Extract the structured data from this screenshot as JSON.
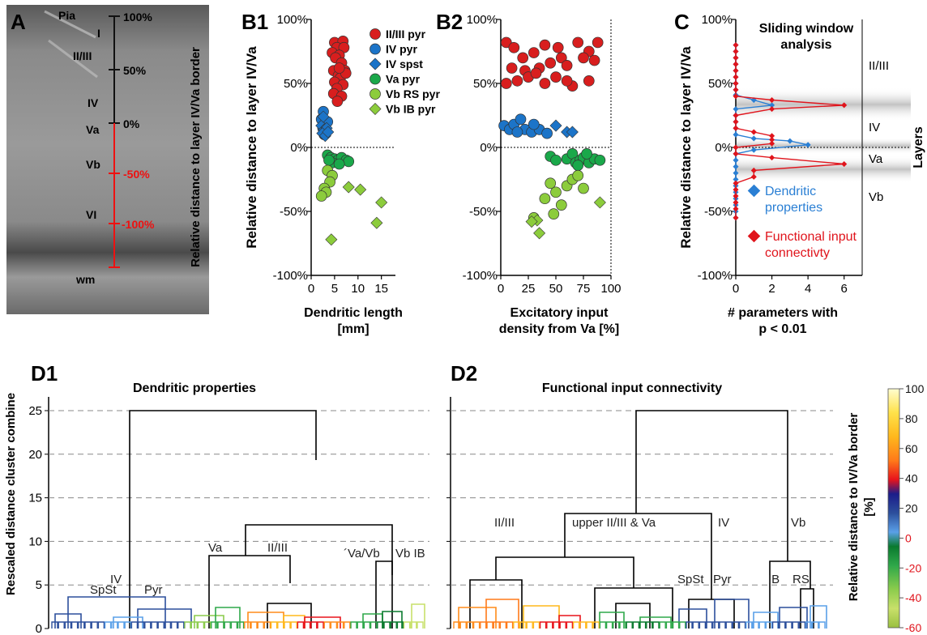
{
  "panels": {
    "A": {
      "letter": "A",
      "labels": {
        "pia": "Pia",
        "i": "I",
        "ii_iii": "II/III",
        "iv": "IV",
        "va": "Va",
        "vb": "Vb",
        "vi": "VI",
        "wm": "wm"
      },
      "scale_ticks": [
        "100%",
        "50%",
        "0%",
        "-50%",
        "-100%"
      ],
      "side_label": "Relative distance to layer IV/Va border",
      "colors": {
        "black_scale": "#111111",
        "red_scale": "#ee1111"
      }
    },
    "B1": {
      "letter": "B1",
      "xlabel_lines": [
        "Dendritic length",
        "[mm]"
      ]
    },
    "B2": {
      "letter": "B2",
      "xlabel_lines": [
        "Excitatory input",
        "density from Va [%]"
      ]
    },
    "B_shared_ylabel": "Relative distance to layer IV/Va",
    "C": {
      "letter": "C",
      "title_lines": [
        "Sliding window",
        "analysis"
      ],
      "ylabel": "Relative distance to layer IV/Va",
      "xlabel_lines": [
        "# parameters with",
        "p < 0.01"
      ],
      "layers_label": "Layers",
      "layer_names": [
        "II/III",
        "IV",
        "Va",
        "Vb"
      ],
      "legend": [
        {
          "lines": [
            "Dendritic",
            "properties"
          ],
          "color": "#2a7fd4"
        },
        {
          "lines": [
            "Functional input",
            "connectivty"
          ],
          "color": "#e0141c"
        }
      ]
    },
    "D1": {
      "letter": "D1",
      "title": "Dendritic properties",
      "ylabel": "Rescaled distance cluster combine",
      "labels": [
        "IV",
        "SpSt",
        "Pyr",
        "Va",
        "II/III",
        "´Va/Vb",
        "Vb IB"
      ]
    },
    "D2": {
      "letter": "D2",
      "title": "Functional input connectivity",
      "labels": [
        "II/III",
        "upper II/III & Va",
        "IV",
        "Vb",
        "SpSt",
        "Pyr",
        "IB",
        "RS"
      ]
    },
    "colorbar": {
      "ticks": [
        "100",
        "80",
        "60",
        "40",
        "20",
        "0",
        "-20",
        "-40",
        "-60"
      ],
      "label_lines": [
        "Relative distance to IV/Va border",
        "[%]"
      ],
      "colors": [
        "#fffdd0",
        "#ffe24a",
        "#ffb81c",
        "#ff8c1a",
        "#f5561c",
        "#e8141c",
        "#1c1c8a",
        "#2c4f9c",
        "#5aa0e8",
        "#0a7a2e",
        "#2fa84a",
        "#8ccc4c",
        "#c8e06a",
        "#9ac040"
      ],
      "tick_colors": {
        "positive": "#111111",
        "negative": "#e0141c"
      }
    }
  },
  "chart_data": [
    {
      "type": "scatter",
      "panel": "B1",
      "xlabel": "Dendritic length [mm]",
      "ylabel": "Relative distance to layer IV/Va",
      "xlim": [
        0,
        18
      ],
      "ylim": [
        -100,
        100
      ],
      "xticks": [
        "0",
        "5",
        "10",
        "15"
      ],
      "yticks": [
        "-100%",
        "-50%",
        "0%",
        "50%",
        "100%"
      ],
      "legend_position": "top-right",
      "series": [
        {
          "name": "II/III pyr",
          "marker": "circle",
          "color": "#d81e1e",
          "points": [
            [
              5,
              82
            ],
            [
              6.8,
              83
            ],
            [
              5.5,
              78
            ],
            [
              7,
              78
            ],
            [
              4.5,
              74
            ],
            [
              6,
              72
            ],
            [
              5.2,
              70
            ],
            [
              6.5,
              66
            ],
            [
              4.8,
              60
            ],
            [
              7.2,
              60
            ],
            [
              5.8,
              56
            ],
            [
              6.2,
              54
            ],
            [
              5,
              51
            ],
            [
              6.8,
              49
            ],
            [
              5.5,
              46
            ],
            [
              4.8,
              42
            ],
            [
              6.5,
              40
            ],
            [
              5.6,
              36
            ],
            [
              7.4,
              58
            ],
            [
              6,
              62
            ]
          ]
        },
        {
          "name": "IV pyr",
          "marker": "circle",
          "color": "#1c74c8",
          "points": [
            [
              2.6,
              28
            ],
            [
              2.2,
              22
            ],
            [
              3,
              18
            ],
            [
              2.5,
              15
            ],
            [
              3.2,
              12
            ],
            [
              2.8,
              10
            ],
            [
              3.5,
              20
            ]
          ]
        },
        {
          "name": "IV spst",
          "marker": "diamond",
          "color": "#1c74c8",
          "points": [
            [
              2.2,
              17
            ],
            [
              2.8,
              14
            ],
            [
              3.3,
              15
            ],
            [
              2.4,
              11
            ],
            [
              3,
              9
            ],
            [
              2.6,
              24
            ],
            [
              3.6,
              12
            ]
          ]
        },
        {
          "name": "Va pyr",
          "marker": "circle",
          "color": "#1aa84a",
          "points": [
            [
              3.5,
              -6
            ],
            [
              4.2,
              -8
            ],
            [
              5,
              -9
            ],
            [
              5.7,
              -10
            ],
            [
              6.5,
              -8
            ],
            [
              7.5,
              -10
            ],
            [
              8,
              -11
            ],
            [
              4.5,
              -12
            ],
            [
              6,
              -13
            ],
            [
              3.8,
              -10
            ]
          ]
        },
        {
          "name": "Vb RS pyr",
          "marker": "circle",
          "color": "#8ccc3c",
          "points": [
            [
              3.5,
              -18
            ],
            [
              4.5,
              -22
            ],
            [
              4,
              -27
            ],
            [
              2.8,
              -32
            ],
            [
              3.2,
              -35
            ],
            [
              2.2,
              -38
            ]
          ]
        },
        {
          "name": "Vb IB pyr",
          "marker": "diamond",
          "color": "#8ccc3c",
          "points": [
            [
              8,
              -31
            ],
            [
              10.5,
              -33
            ],
            [
              15,
              -43
            ],
            [
              14,
              -59
            ],
            [
              4.3,
              -72
            ]
          ]
        }
      ]
    },
    {
      "type": "scatter",
      "panel": "B2",
      "xlabel": "Excitatory input density from Va [%]",
      "xlim": [
        0,
        100
      ],
      "ylim": [
        -100,
        100
      ],
      "xticks": [
        "0",
        "25",
        "50",
        "75",
        "100"
      ],
      "yticks": [
        "-100%",
        "-50%",
        "0%",
        "50%",
        "100%"
      ],
      "series": [
        {
          "name": "II/III pyr",
          "marker": "circle",
          "color": "#d81e1e",
          "points": [
            [
              5,
              82
            ],
            [
              12,
              78
            ],
            [
              20,
              70
            ],
            [
              30,
              74
            ],
            [
              40,
              80
            ],
            [
              52,
              78
            ],
            [
              70,
              82
            ],
            [
              80,
              75
            ],
            [
              88,
              82
            ],
            [
              10,
              62
            ],
            [
              22,
              60
            ],
            [
              35,
              62
            ],
            [
              45,
              66
            ],
            [
              55,
              70
            ],
            [
              60,
              64
            ],
            [
              75,
              70
            ],
            [
              85,
              68
            ],
            [
              5,
              50
            ],
            [
              15,
              52
            ],
            [
              25,
              55
            ],
            [
              40,
              50
            ],
            [
              50,
              55
            ],
            [
              65,
              48
            ],
            [
              80,
              52
            ],
            [
              60,
              52
            ],
            [
              32,
              58
            ]
          ]
        },
        {
          "name": "IV pyr",
          "marker": "circle",
          "color": "#1c74c8",
          "points": [
            [
              3,
              17
            ],
            [
              8,
              14
            ],
            [
              12,
              18
            ],
            [
              18,
              22
            ],
            [
              22,
              14
            ],
            [
              28,
              12
            ],
            [
              35,
              14
            ],
            [
              42,
              11
            ],
            [
              30,
              18
            ],
            [
              15,
              12
            ]
          ]
        },
        {
          "name": "IV spst",
          "marker": "diamond",
          "color": "#1c74c8",
          "points": [
            [
              50,
              17
            ],
            [
              60,
              12
            ],
            [
              65,
              12
            ]
          ]
        },
        {
          "name": "Va pyr",
          "marker": "circle",
          "color": "#1aa84a",
          "points": [
            [
              45,
              -7
            ],
            [
              50,
              -10
            ],
            [
              60,
              -9
            ],
            [
              65,
              -5
            ],
            [
              68,
              -12
            ],
            [
              72,
              -10
            ],
            [
              75,
              -8
            ],
            [
              80,
              -12
            ],
            [
              85,
              -9
            ],
            [
              78,
              -5
            ],
            [
              90,
              -10
            ],
            [
              70,
              -14
            ]
          ]
        },
        {
          "name": "Vb RS pyr",
          "marker": "circle",
          "color": "#8ccc3c",
          "points": [
            [
              45,
              -28
            ],
            [
              50,
              -35
            ],
            [
              60,
              -30
            ],
            [
              65,
              -25
            ],
            [
              70,
              -22
            ],
            [
              75,
              -32
            ],
            [
              40,
              -40
            ],
            [
              55,
              -45
            ],
            [
              48,
              -52
            ],
            [
              30,
              -55
            ]
          ]
        },
        {
          "name": "Vb IB pyr",
          "marker": "diamond",
          "color": "#8ccc3c",
          "points": [
            [
              90,
              -43
            ],
            [
              33,
              -57
            ],
            [
              35,
              -67
            ],
            [
              28,
              -58
            ]
          ]
        }
      ]
    },
    {
      "type": "line",
      "panel": "C",
      "xlabel": "# parameters with p < 0.01",
      "ylabel": "Relative distance to layer IV/Va",
      "xlim": [
        0,
        7
      ],
      "ylim": [
        -100,
        100
      ],
      "xticks": [
        "0",
        "2",
        "4",
        "6"
      ],
      "yticks": [
        "-100%",
        "-50%",
        "0%",
        "50%",
        "100%"
      ],
      "series": [
        {
          "name": "Dendritic properties",
          "color": "#2a7fd4",
          "points": [
            [
              0,
              80
            ],
            [
              0,
              75
            ],
            [
              0,
              70
            ],
            [
              0,
              65
            ],
            [
              0,
              60
            ],
            [
              0,
              55
            ],
            [
              0,
              50
            ],
            [
              0,
              45
            ],
            [
              0,
              41
            ],
            [
              1,
              37
            ],
            [
              2,
              33
            ],
            [
              0,
              30
            ],
            [
              0,
              25
            ],
            [
              0,
              20
            ],
            [
              0,
              15
            ],
            [
              0,
              10
            ],
            [
              1,
              7
            ],
            [
              3,
              5
            ],
            [
              4,
              2
            ],
            [
              1,
              -2
            ],
            [
              0,
              -5
            ],
            [
              0,
              -10
            ],
            [
              0,
              -15
            ],
            [
              0,
              -20
            ],
            [
              0,
              -25
            ],
            [
              0,
              -30
            ],
            [
              0,
              -35
            ],
            [
              0,
              -40
            ],
            [
              0,
              -45
            ],
            [
              0,
              -50
            ],
            [
              0,
              -55
            ]
          ]
        },
        {
          "name": "Functional input connectivty",
          "color": "#e0141c",
          "points": [
            [
              0,
              80
            ],
            [
              0,
              75
            ],
            [
              0,
              70
            ],
            [
              0,
              65
            ],
            [
              0,
              60
            ],
            [
              0,
              55
            ],
            [
              0,
              50
            ],
            [
              0,
              45
            ],
            [
              0,
              40
            ],
            [
              2,
              37
            ],
            [
              6,
              33
            ],
            [
              2,
              30
            ],
            [
              0,
              25
            ],
            [
              0,
              20
            ],
            [
              0,
              15
            ],
            [
              1,
              12
            ],
            [
              2,
              9
            ],
            [
              2,
              6
            ],
            [
              2,
              3
            ],
            [
              0,
              0
            ],
            [
              0,
              -5
            ],
            [
              2,
              -8
            ],
            [
              6,
              -13
            ],
            [
              1,
              -18
            ],
            [
              1,
              -23
            ],
            [
              0,
              -28
            ],
            [
              0,
              -33
            ],
            [
              0,
              -38
            ],
            [
              0,
              -43
            ],
            [
              0,
              -48
            ],
            [
              0,
              -55
            ]
          ]
        }
      ]
    }
  ]
}
